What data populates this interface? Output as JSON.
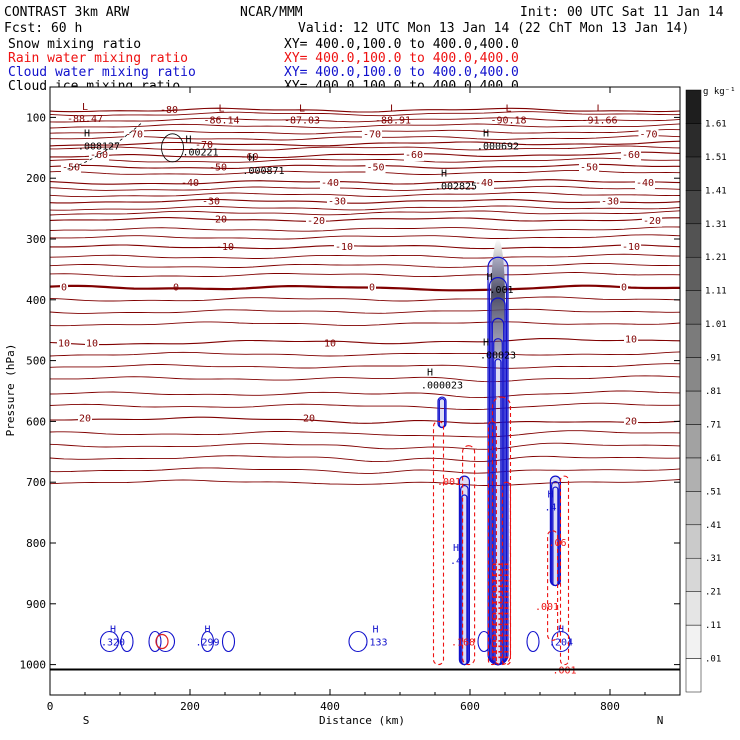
{
  "header": {
    "title_left": "CONTRAST  3km ARW",
    "title_center": "NCAR/MMM",
    "init": "Init: 00 UTC Sat 11 Jan 14",
    "fcst": "Fcst:   60 h",
    "valid": "Valid: 12 UTC Mon 13 Jan 14 (22 ChT Mon 13 Jan 14)"
  },
  "colors": {
    "snow": "#000000",
    "rain": "#ee1111",
    "cloud_water": "#1111cc",
    "cloud_ice": "#000000",
    "temperature": "#800000"
  },
  "chart_data": {
    "type": "cross-section",
    "xlabel": "Distance (km)",
    "ylabel": "Pressure (hPa)",
    "xlim": [
      0,
      900
    ],
    "ylim": [
      1050,
      50
    ],
    "x_ticks": [
      0,
      200,
      400,
      600,
      800
    ],
    "x_tick_labels": [
      "0",
      "200",
      "400",
      "600",
      "800"
    ],
    "y_ticks": [
      100,
      200,
      300,
      400,
      500,
      600,
      700,
      800,
      900,
      1000
    ],
    "y_tick_labels": [
      "100",
      "200",
      "300",
      "400",
      "500",
      "600",
      "700",
      "800",
      "900",
      "1000"
    ],
    "endpoint_labels": {
      "left": "S",
      "right": "N"
    },
    "legend": [
      {
        "name": "Snow mixing ratio",
        "xy": "XY= 400.0,100.0 to 400.0,400.0",
        "color": "#000000"
      },
      {
        "name": "Rain water mixing ratio",
        "xy": "XY= 400.0,100.0 to 400.0,400.0",
        "color": "#ee1111"
      },
      {
        "name": "Cloud water mixing ratio",
        "xy": "XY= 400.0,100.0 to 400.0,400.0",
        "color": "#1111cc"
      },
      {
        "name": "Cloud ice mixing ratio",
        "xy": "XY= 400.0,100.0 to 400.0,400.0",
        "color": "#000000"
      }
    ],
    "colorbar": {
      "units": "g kg⁻¹",
      "levels": [
        0.01,
        0.11,
        0.21,
        0.31,
        0.41,
        0.51,
        0.61,
        0.71,
        0.81,
        0.91,
        1.01,
        1.11,
        1.21,
        1.31,
        1.41,
        1.51,
        1.61
      ],
      "labels": [
        ".01",
        ".11",
        ".21",
        ".31",
        ".41",
        ".51",
        ".61",
        ".71",
        ".81",
        ".91",
        "1.01",
        "1.11",
        "1.21",
        "1.31",
        "1.41",
        "1.51",
        "1.61"
      ]
    },
    "ground_pressure": 1008,
    "temperature_contours": [
      {
        "value": -80,
        "p_left": 88,
        "p_right": 88,
        "label": "-80",
        "lx": 170
      },
      {
        "value": -70,
        "p_left": 145,
        "p_right": 142,
        "label": "-70",
        "lx": 220
      },
      {
        "value": -60,
        "p_left": 165,
        "p_right": 160,
        "label": "-60",
        "lx": 285
      },
      {
        "value": -50,
        "p_left": 182,
        "p_right": 180,
        "label": "-50",
        "lx": 240
      },
      {
        "value": -40,
        "p_left": 208,
        "p_right": 205,
        "label": "-40",
        "lx": 200
      },
      {
        "value": -30,
        "p_left": 238,
        "p_right": 238,
        "label": "-30",
        "lx": 230
      },
      {
        "value": -20,
        "p_left": 268,
        "p_right": 268,
        "label": "-20",
        "lx": 240
      },
      {
        "value": -10,
        "p_left": 313,
        "p_right": 313,
        "label": "-10",
        "lx": 250
      },
      {
        "value": 0,
        "p_left": 380,
        "p_right": 380,
        "label": "0",
        "lx": 180
      },
      {
        "value": 10,
        "p_left": 472,
        "p_right": 465,
        "label": "10",
        "lx": 400
      },
      {
        "value": 20,
        "p_left": 595,
        "p_right": 600,
        "label": "20",
        "lx": 370
      }
    ],
    "temperature_labels": [
      {
        "text": "-70",
        "x": 120,
        "p": 128
      },
      {
        "text": "-70",
        "x": 460,
        "p": 128
      },
      {
        "text": "-70",
        "x": 855,
        "p": 128
      },
      {
        "text": "-60",
        "x": 70,
        "p": 162
      },
      {
        "text": "-60",
        "x": 520,
        "p": 162
      },
      {
        "text": "-60",
        "x": 830,
        "p": 162
      },
      {
        "text": "-50",
        "x": 30,
        "p": 182
      },
      {
        "text": "-50",
        "x": 465,
        "p": 182
      },
      {
        "text": "-50",
        "x": 770,
        "p": 182
      },
      {
        "text": "-40",
        "x": 400,
        "p": 208
      },
      {
        "text": "-40",
        "x": 620,
        "p": 208
      },
      {
        "text": "-40",
        "x": 850,
        "p": 208
      },
      {
        "text": "-30",
        "x": 410,
        "p": 238
      },
      {
        "text": "-30",
        "x": 800,
        "p": 238
      },
      {
        "text": "-20",
        "x": 380,
        "p": 270
      },
      {
        "text": "-20",
        "x": 860,
        "p": 270
      },
      {
        "text": "-10",
        "x": 420,
        "p": 313
      },
      {
        "text": "-10",
        "x": 830,
        "p": 313
      },
      {
        "text": "0",
        "x": 20,
        "p": 380
      },
      {
        "text": "0",
        "x": 460,
        "p": 380
      },
      {
        "text": "0",
        "x": 820,
        "p": 380
      },
      {
        "text": "10",
        "x": 20,
        "p": 472
      },
      {
        "text": "10",
        "x": 60,
        "p": 472
      },
      {
        "text": "10",
        "x": 830,
        "p": 465
      },
      {
        "text": "20",
        "x": 50,
        "p": 595
      },
      {
        "text": "20",
        "x": 830,
        "p": 600
      }
    ],
    "top_low_labels": [
      {
        "text": "-88.47",
        "x": 50,
        "p": 88
      },
      {
        "text": "-86.14",
        "x": 245,
        "p": 90
      },
      {
        "text": "-87.03",
        "x": 360,
        "p": 90
      },
      {
        "text": "-88.91",
        "x": 490,
        "p": 90
      },
      {
        "text": "-90.18",
        "x": 655,
        "p": 90
      },
      {
        "text": "-91.66",
        "x": 785,
        "p": 90
      }
    ],
    "snow_annotations": [
      {
        "text": ".008127",
        "x": 70,
        "p": 148
      },
      {
        "text": ".00221",
        "x": 215,
        "p": 158
      },
      {
        "text": ".000871",
        "x": 305,
        "p": 188
      },
      {
        "text": ".000692",
        "x": 640,
        "p": 148
      },
      {
        "text": ".002825",
        "x": 580,
        "p": 214
      },
      {
        "text": ".001",
        "x": 645,
        "p": 384
      },
      {
        "text": ".00023",
        "x": 640,
        "p": 492
      },
      {
        "text": ".000023",
        "x": 560,
        "p": 541
      }
    ],
    "cloud_water_labels": [
      {
        "text": ".320",
        "x": 90,
        "p": 964
      },
      {
        "text": ".299",
        "x": 225,
        "p": 964
      },
      {
        "text": ".133",
        "x": 465,
        "p": 964
      },
      {
        "text": ".204",
        "x": 730,
        "p": 964
      },
      {
        "text": ".4",
        "x": 715,
        "p": 742
      },
      {
        "text": ".4",
        "x": 580,
        "p": 830
      }
    ],
    "rain_labels": [
      {
        "text": ".001",
        "x": 570,
        "p": 700
      },
      {
        "text": ".001",
        "x": 710,
        "p": 905
      },
      {
        "text": ".001",
        "x": 735,
        "p": 1010
      },
      {
        "text": ".168",
        "x": 590,
        "p": 964
      },
      {
        "text": ".06",
        "x": 725,
        "p": 800
      }
    ],
    "ice_plume": {
      "x": 640,
      "p_top": 300,
      "p_bottom": 500,
      "max": 1.41
    }
  }
}
